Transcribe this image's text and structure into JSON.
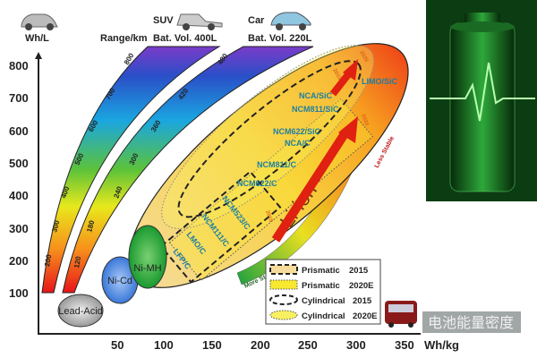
{
  "y_axis": {
    "unit": "Wh/L",
    "ticks": [
      "800",
      "700",
      "600",
      "500",
      "400",
      "300",
      "200",
      "100"
    ]
  },
  "x_axis": {
    "unit": "Wh/kg",
    "ticks": [
      "50",
      "100",
      "150",
      "200",
      "250",
      "300",
      "350"
    ]
  },
  "headers": {
    "range": "Range/km",
    "suv": "SUV",
    "suv_vol": "Bat. Vol. 400L",
    "car": "Car",
    "car_vol": "Bat. Vol. 220L"
  },
  "suv_band_ticks": [
    "800",
    "700",
    "600",
    "500",
    "400",
    "300",
    "200"
  ],
  "car_band_ticks": [
    "480",
    "420",
    "360",
    "300",
    "240",
    "180",
    "120"
  ],
  "chemistries": {
    "lead_acid": "Lead-Acid",
    "ni_cd": "Ni-Cd",
    "ni_mh": "Ni-MH",
    "li_ion": "Li-ion"
  },
  "materials": {
    "limo_sic": "LIMO/SiC",
    "nca_sic": "NCA/SiC",
    "ncm811_sic": "NCM811/SiC",
    "ncm622_sic": "NCM622/SiC",
    "nca_c": "NCA/C",
    "ncm811_c": "NCM811/C",
    "ncm622_c": "NCM622/C",
    "ncm523_c": "NCM523/C",
    "ncm111_c": "NCM111/C",
    "lmo_c": "LMO/C",
    "lfp_c": "LFP/C"
  },
  "years": {
    "y2015a": "2015",
    "y2020a": "2020",
    "y2015b": "2015",
    "y2020b": "2020"
  },
  "stability": {
    "more": "More Stable",
    "less": "Less Stable"
  },
  "legend": [
    {
      "label": "Prismatic",
      "year": "2015"
    },
    {
      "label": "Prismatic",
      "year": "2020E"
    },
    {
      "label": "Cylindrical",
      "year": "2015"
    },
    {
      "label": "Cylindrical",
      "year": "2020E"
    }
  ],
  "watermark": "电池能量密度",
  "colors": {
    "material_text": "#1d7fa0",
    "arrow": "#e02010",
    "battery_bg": "#0c3d12",
    "battery_glow": "#3be04a"
  }
}
